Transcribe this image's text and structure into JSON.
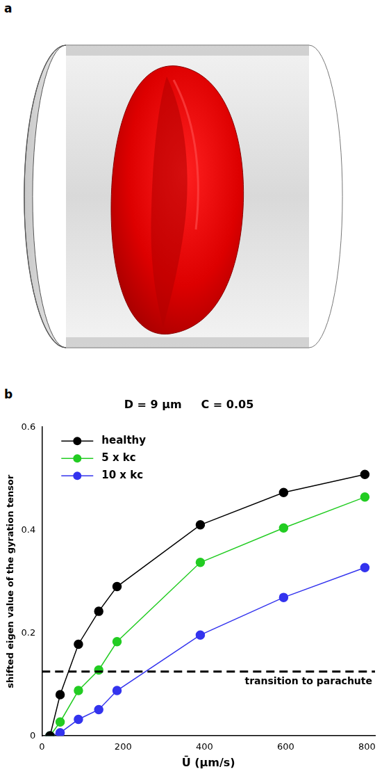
{
  "figure_a": {
    "label": "a"
  },
  "chart_data": {
    "label": "b",
    "type": "line",
    "title": "D = 9 μm     C = 0.05",
    "x_label": "Ū (μm/s)",
    "y_label": "shifted eigen value of the gyration tensor",
    "x": [
      20,
      45,
      90,
      140,
      185,
      390,
      595,
      795
    ],
    "series": [
      {
        "name": "healthy",
        "color": "#000000",
        "marker": "circle",
        "values": [
          0,
          0.08,
          0.178,
          0.242,
          0.29,
          0.41,
          0.473,
          0.508
        ]
      },
      {
        "name": "5 x kc",
        "color": "#22cc22",
        "marker": "circle",
        "values": [
          0,
          0.027,
          0.088,
          0.128,
          0.183,
          0.337,
          0.404,
          0.464
        ]
      },
      {
        "name": "10 x kc",
        "color": "#3333ee",
        "marker": "circle",
        "values": [
          0,
          0.006,
          0.032,
          0.051,
          0.088,
          0.196,
          0.269,
          0.327
        ]
      }
    ],
    "xlim": [
      0,
      820
    ],
    "xticks": [
      0,
      200,
      400,
      600,
      800
    ],
    "ylim": [
      0,
      0.6
    ],
    "yticks": [
      0,
      0.2,
      0.4,
      0.6
    ],
    "grid": false,
    "legend": "upper left",
    "annotations": [
      {
        "text": "transition to parachute",
        "y": 0.125,
        "line_style": "dashed"
      }
    ]
  }
}
